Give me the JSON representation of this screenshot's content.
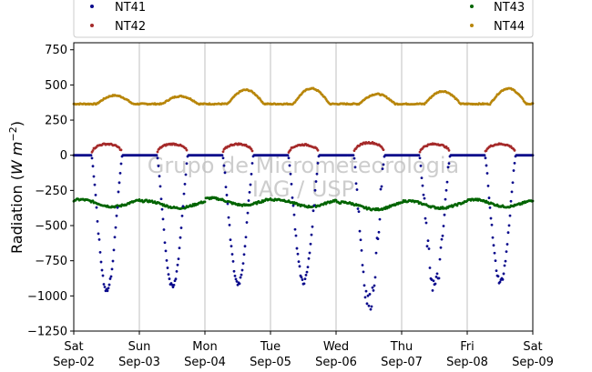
{
  "chart_data": {
    "type": "scatter",
    "ylabel": "Radiation",
    "ylabel_unit_base": "W m",
    "ylabel_unit_exp": "−2",
    "ylim": [
      -1250,
      800
    ],
    "yticks": [
      -1250,
      -1000,
      -750,
      -500,
      -250,
      0,
      250,
      500,
      750
    ],
    "xlim": [
      "2017-09-02",
      "2017-09-09"
    ],
    "x_ticks": [
      {
        "day": 0,
        "weekday": "Sat",
        "date": "Sep-02"
      },
      {
        "day": 1,
        "weekday": "Sun",
        "date": "Sep-03"
      },
      {
        "day": 2,
        "weekday": "Mon",
        "date": "Sep-04"
      },
      {
        "day": 3,
        "weekday": "Tue",
        "date": "Sep-05"
      },
      {
        "day": 4,
        "weekday": "Wed",
        "date": "Sep-06"
      },
      {
        "day": 5,
        "weekday": "Thu",
        "date": "Sep-07"
      },
      {
        "day": 6,
        "weekday": "Fri",
        "date": "Sep-08"
      },
      {
        "day": 7,
        "weekday": "Sat",
        "date": "Sep-09"
      }
    ],
    "grid": "vertical",
    "legend_placement": "top",
    "watermark": [
      "Grupo de Micrometeorologia",
      "IAG / USP"
    ],
    "series": [
      {
        "name": "NT41",
        "color": "#0a0a8c",
        "description": "nighttime 0, daytime dip",
        "daily_min": [
          -960,
          -940,
          -910,
          -900,
          -1050,
          -930,
          -900
        ]
      },
      {
        "name": "NT42",
        "color": "#a52a2a",
        "description": "daytime positive hump",
        "daily_max": [
          85,
          85,
          85,
          80,
          95,
          85,
          85
        ]
      },
      {
        "name": "NT43",
        "color": "#006400",
        "description": "around -350 with daily variation",
        "daily_mean": [
          -340,
          -350,
          -330,
          -340,
          -360,
          -350,
          -340
        ]
      },
      {
        "name": "NT44",
        "color": "#b8860b",
        "description": "around 380 with daily peaks",
        "daily_max": [
          425,
          420,
          465,
          475,
          435,
          455,
          475
        ]
      }
    ]
  }
}
